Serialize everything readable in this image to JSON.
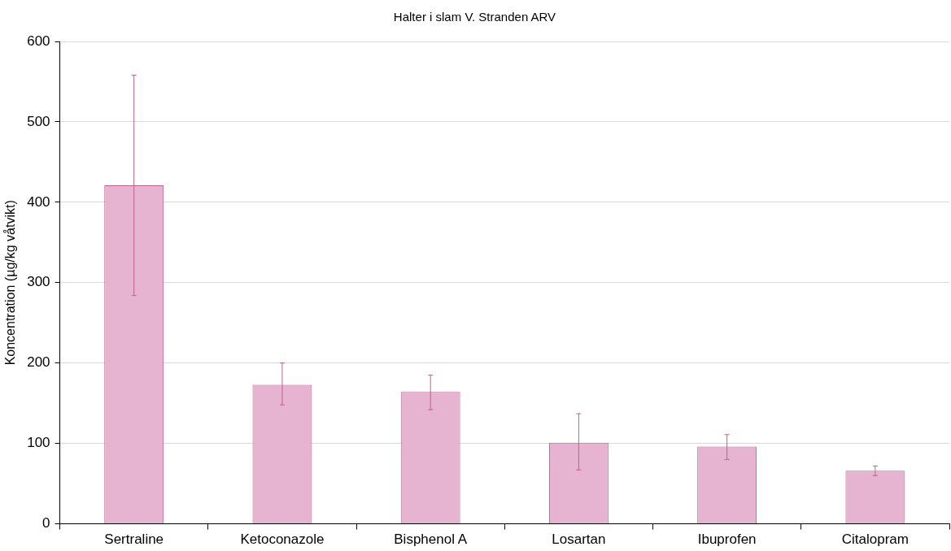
{
  "chart_data": {
    "type": "bar",
    "title": "Halter i slam V. Stranden ARV",
    "ylabel": "Koncentration (µg/kg våtvikt)",
    "categories": [
      "Sertraline",
      "Ketoconazole",
      "Bisphenol A",
      "Losartan",
      "Ibuprofen",
      "Citalopram"
    ],
    "values": [
      421,
      173,
      164,
      101,
      96,
      66
    ],
    "errors": [
      [
        284,
        558
      ],
      [
        148,
        200
      ],
      [
        142,
        185
      ],
      [
        67,
        137
      ],
      [
        80,
        111
      ],
      [
        60,
        72
      ]
    ],
    "color": "#e6b3d1",
    "ylim": [
      0,
      600
    ],
    "yticks": [
      0,
      100,
      200,
      300,
      400,
      500,
      600
    ],
    "grid": "y",
    "legend": false
  }
}
